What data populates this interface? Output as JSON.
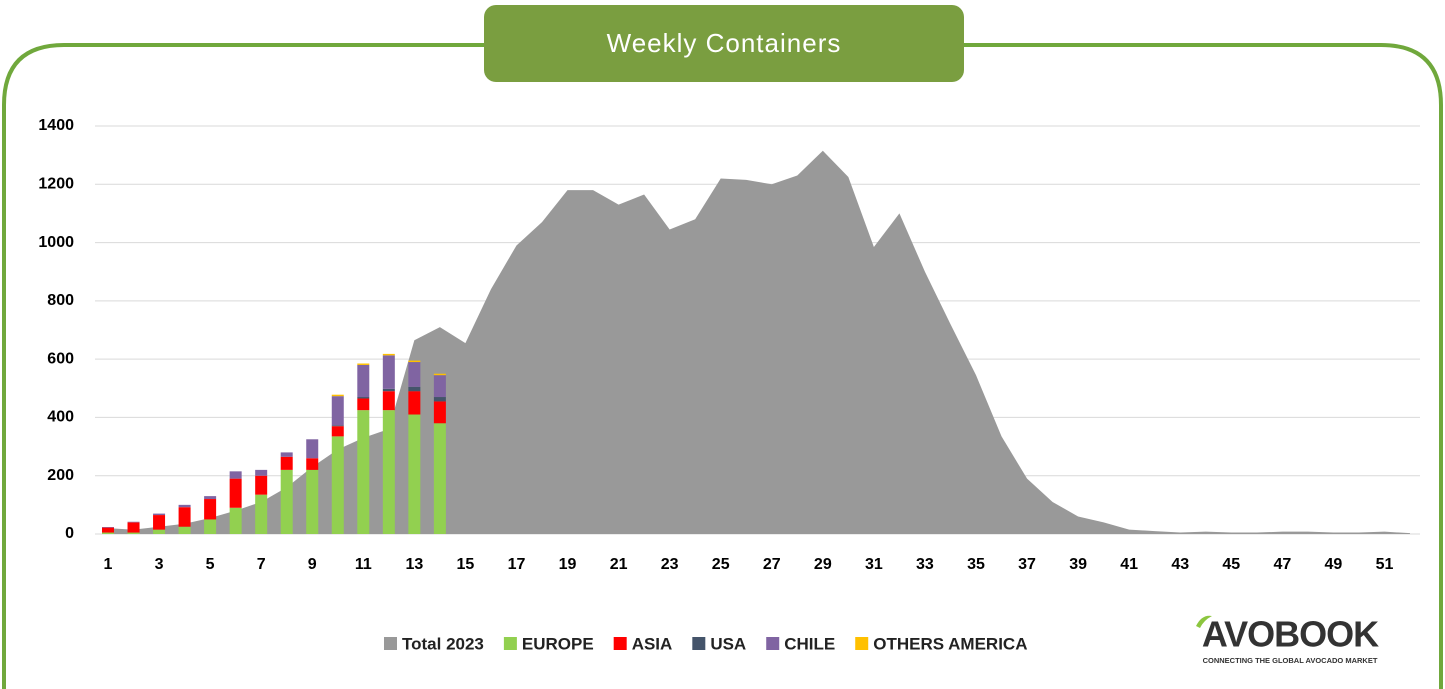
{
  "chart_data": {
    "type": "bar",
    "stacked": true,
    "title": "Weekly Containers",
    "categories": [
      1,
      null,
      3,
      null,
      5,
      null,
      7,
      null,
      9,
      null,
      11,
      null,
      13,
      null,
      15,
      null,
      17,
      null,
      19,
      null,
      21,
      null,
      23,
      null,
      25,
      null,
      27,
      null,
      29,
      null,
      31,
      null,
      33,
      null,
      35,
      null,
      37,
      null,
      39,
      null,
      41,
      null,
      43,
      null,
      45,
      null,
      47,
      null,
      49,
      null,
      51,
      null
    ],
    "series": [
      {
        "name": "Total 2023",
        "type": "area",
        "color": "#999999",
        "values": [
          20,
          15,
          25,
          35,
          55,
          80,
          110,
          160,
          230,
          290,
          330,
          360,
          665,
          710,
          655,
          840,
          990,
          1070,
          1180,
          1180,
          1130,
          1165,
          1045,
          1080,
          1220,
          1215,
          1200,
          1230,
          1315,
          1225,
          985,
          1100,
          900,
          720,
          545,
          335,
          190,
          110,
          60,
          40,
          15,
          10,
          5,
          8,
          5,
          5,
          8,
          8,
          5,
          5,
          8,
          3
        ]
      },
      {
        "name": "EUROPE",
        "color": "#92d050",
        "values": [
          5,
          5,
          15,
          25,
          50,
          90,
          135,
          220,
          220,
          335,
          425,
          425,
          410,
          380,
          null,
          null,
          null,
          null,
          null,
          null,
          null,
          null,
          null,
          null,
          null,
          null,
          null,
          null,
          null,
          null,
          null,
          null,
          null,
          null,
          null,
          null,
          null,
          null,
          null,
          null,
          null,
          null,
          null,
          null,
          null,
          null,
          null,
          null,
          null,
          null,
          null,
          null
        ]
      },
      {
        "name": "ASIA",
        "color": "#ff0000",
        "values": [
          17,
          35,
          50,
          67,
          70,
          100,
          65,
          45,
          40,
          35,
          40,
          65,
          80,
          75,
          null,
          null,
          null,
          null,
          null,
          null,
          null,
          null,
          null,
          null,
          null,
          null,
          null,
          null,
          null,
          null,
          null,
          null,
          null,
          null,
          null,
          null,
          null,
          null,
          null,
          null,
          null,
          null,
          null,
          null,
          null,
          null,
          null,
          null,
          null,
          null,
          null,
          null
        ]
      },
      {
        "name": "USA",
        "color": "#44546a",
        "values": [
          0,
          0,
          0,
          0,
          0,
          0,
          0,
          0,
          0,
          3,
          5,
          8,
          15,
          15,
          null,
          null,
          null,
          null,
          null,
          null,
          null,
          null,
          null,
          null,
          null,
          null,
          null,
          null,
          null,
          null,
          null,
          null,
          null,
          null,
          null,
          null,
          null,
          null,
          null,
          null,
          null,
          null,
          null,
          null,
          null,
          null,
          null,
          null,
          null,
          null,
          null,
          null
        ]
      },
      {
        "name": "CHILE",
        "color": "#8064a2",
        "values": [
          2,
          2,
          5,
          8,
          10,
          25,
          20,
          15,
          65,
          100,
          110,
          115,
          85,
          75,
          null,
          null,
          null,
          null,
          null,
          null,
          null,
          null,
          null,
          null,
          null,
          null,
          null,
          null,
          null,
          null,
          null,
          null,
          null,
          null,
          null,
          null,
          null,
          null,
          null,
          null,
          null,
          null,
          null,
          null,
          null,
          null,
          null,
          null,
          null,
          null,
          null,
          null
        ]
      },
      {
        "name": "OTHERS AMERICA",
        "color": "#ffc000",
        "values": [
          0,
          0,
          0,
          0,
          0,
          0,
          0,
          0,
          0,
          5,
          5,
          5,
          5,
          5,
          null,
          null,
          null,
          null,
          null,
          null,
          null,
          null,
          null,
          null,
          null,
          null,
          null,
          null,
          null,
          null,
          null,
          null,
          null,
          null,
          null,
          null,
          null,
          null,
          null,
          null,
          null,
          null,
          null,
          null,
          null,
          null,
          null,
          null,
          null,
          null,
          null,
          null
        ]
      }
    ],
    "ylim": [
      0,
      1400
    ],
    "yticks": [
      0,
      200,
      400,
      600,
      800,
      1000,
      1200,
      1400
    ],
    "grid": true,
    "legend": "bottom"
  },
  "logo": {
    "name": "AVOBOOK",
    "tagline": "CONNECTING THE GLOBAL AVOCADO MARKET"
  }
}
